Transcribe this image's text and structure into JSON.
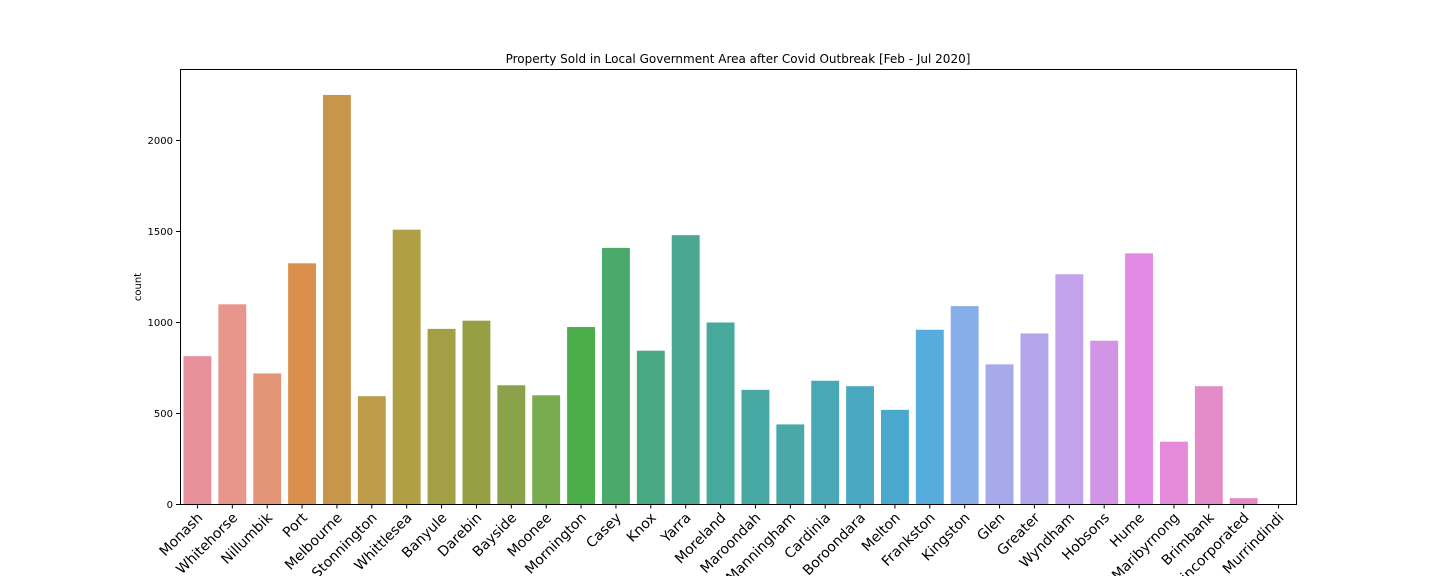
{
  "chart_data": {
    "type": "bar",
    "title": "Property Sold in Local Government Area after Covid Outbreak [Feb - Jul 2020]",
    "xlabel": "",
    "ylabel": "count",
    "ylim": [
      0,
      2390
    ],
    "yticks": [
      0,
      500,
      1000,
      1500,
      2000
    ],
    "grid": false,
    "categories": [
      "Monash",
      "Whitehorse",
      "Nillumbik",
      "Port",
      "Melbourne",
      "Stonnington",
      "Whittlesea",
      "Banyule",
      "Darebin",
      "Bayside",
      "Moonee",
      "Mornington",
      "Casey",
      "Knox",
      "Yarra",
      "Moreland",
      "Maroondah",
      "Manningham",
      "Cardinia",
      "Boroondara",
      "Melton",
      "Frankston",
      "Kingston",
      "Glen",
      "Greater",
      "Wyndham",
      "Hobsons",
      "Hume",
      "Maribyrnong",
      "Brimbank",
      "Unincorporated",
      "Murrindindi"
    ],
    "values": [
      815,
      1100,
      720,
      1325,
      2250,
      595,
      1510,
      965,
      1010,
      655,
      600,
      975,
      1410,
      845,
      1480,
      1000,
      630,
      440,
      680,
      650,
      520,
      960,
      1090,
      770,
      940,
      1265,
      900,
      1380,
      345,
      650,
      35,
      0
    ],
    "colors": [
      "#e8919a",
      "#e8958c",
      "#e39677",
      "#db8f4c",
      "#c8964b",
      "#bd9b49",
      "#b09f45",
      "#a29f45",
      "#979f45",
      "#8aa34a",
      "#79ac4e",
      "#4cae48",
      "#49aa6b",
      "#48a883",
      "#49a891",
      "#47a89d",
      "#48a8a4",
      "#4aa8a9",
      "#4aa8b4",
      "#4ba8c2",
      "#4aa8cf",
      "#56acdc",
      "#87aee8",
      "#a6aaea",
      "#b4a6ea",
      "#c2a2ea",
      "#d295e6",
      "#e28ae6",
      "#e48ad8",
      "#e48bc9",
      "#e48bc1",
      "#e48bb9"
    ]
  }
}
